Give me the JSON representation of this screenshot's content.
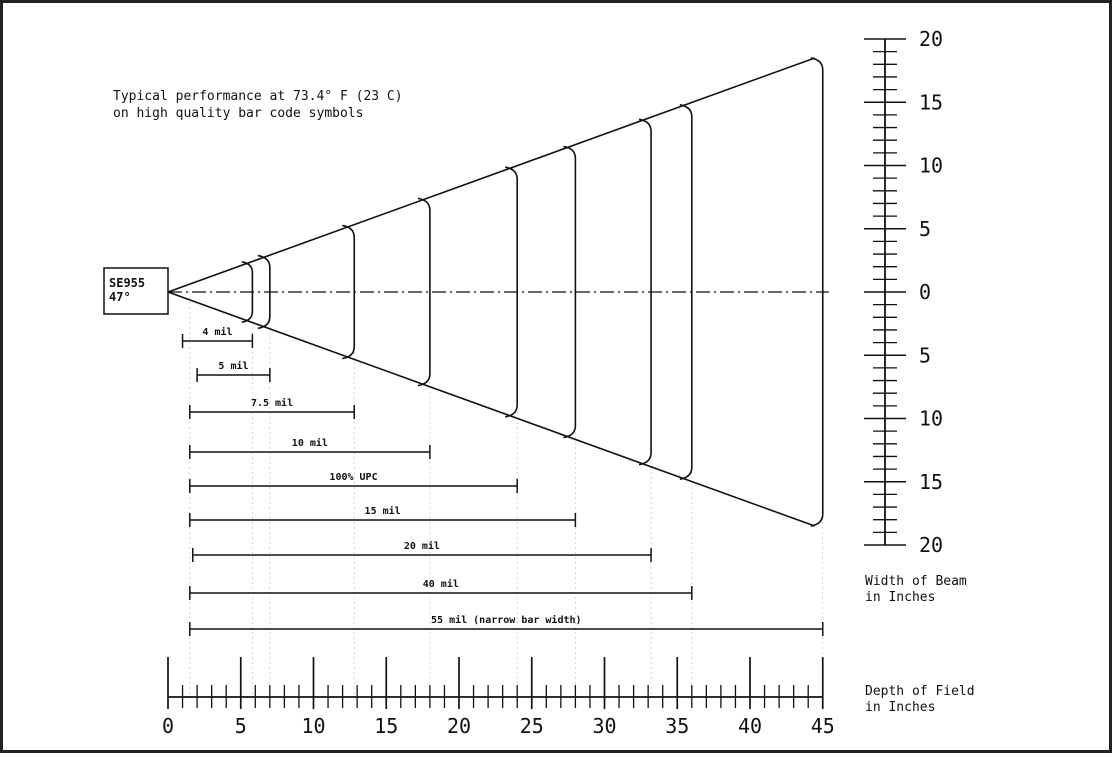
{
  "scanner": {
    "model": "SE955",
    "angle": "47°"
  },
  "note": {
    "line1": "Typical performance at 73.4° F (23 C)",
    "line2": "on high quality bar code symbols"
  },
  "beam_axis": {
    "title_line1": "Width of Beam",
    "title_line2": "in Inches",
    "labels": [
      "20",
      "15",
      "10",
      "5",
      "0",
      "5",
      "10",
      "15",
      "20"
    ]
  },
  "depth_axis": {
    "title_line1": "Depth of Field",
    "title_line2": "in Inches",
    "labels": [
      "0",
      "5",
      "10",
      "15",
      "20",
      "25",
      "30",
      "35",
      "40",
      "45"
    ]
  },
  "chart_data": {
    "type": "range",
    "x_unit": "inches (depth of field)",
    "y_unit": "inches (width of beam)",
    "xlim": [
      0,
      45
    ],
    "ylim": [
      -20,
      20
    ],
    "beam_edge_at_45in": 18.5,
    "ranges": [
      {
        "label": "4 mil",
        "near": 1.0,
        "far": 5.8
      },
      {
        "label": "5 mil",
        "near": 2.0,
        "far": 7.0
      },
      {
        "label": "7.5 mil",
        "near": 1.5,
        "far": 12.8
      },
      {
        "label": "10 mil",
        "near": 1.5,
        "far": 18.0
      },
      {
        "label": "100% UPC",
        "near": 1.5,
        "far": 24.0
      },
      {
        "label": "15 mil",
        "near": 1.5,
        "far": 28.0
      },
      {
        "label": "20 mil",
        "near": 1.7,
        "far": 33.2
      },
      {
        "label": "40 mil",
        "near": 1.5,
        "far": 36.0
      },
      {
        "label": "55 mil (narrow bar width)",
        "near": 1.5,
        "far": 45.0
      }
    ]
  }
}
